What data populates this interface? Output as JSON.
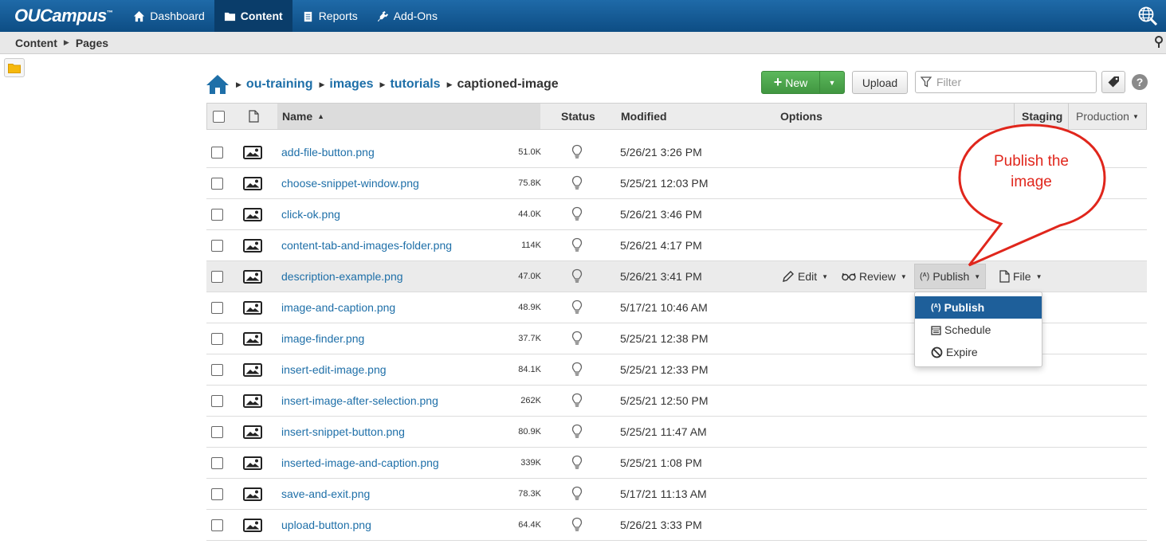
{
  "app": {
    "logo_text": "OUCampus"
  },
  "nav": {
    "dashboard": "Dashboard",
    "content": "Content",
    "reports": "Reports",
    "addons": "Add-Ons"
  },
  "breadcrumb": {
    "section": "Content",
    "page": "Pages"
  },
  "path": {
    "items": [
      "ou-training",
      "images",
      "tutorials"
    ],
    "current": "captioned-image"
  },
  "toolbar": {
    "new_label": "New",
    "upload_label": "Upload",
    "filter_placeholder": "Filter"
  },
  "table": {
    "headers": {
      "name": "Name",
      "status": "Status",
      "modified": "Modified",
      "options": "Options",
      "staging": "Staging",
      "production": "Production"
    },
    "rows": [
      {
        "name": "add-file-button.png",
        "size": "51.0K",
        "modified": "5/26/21 3:26 PM"
      },
      {
        "name": "choose-snippet-window.png",
        "size": "75.8K",
        "modified": "5/25/21 12:03 PM"
      },
      {
        "name": "click-ok.png",
        "size": "44.0K",
        "modified": "5/26/21 3:46 PM"
      },
      {
        "name": "content-tab-and-images-folder.png",
        "size": "114K",
        "modified": "5/26/21 4:17 PM"
      },
      {
        "name": "description-example.png",
        "size": "47.0K",
        "modified": "5/26/21 3:41 PM"
      },
      {
        "name": "image-and-caption.png",
        "size": "48.9K",
        "modified": "5/17/21 10:46 AM"
      },
      {
        "name": "image-finder.png",
        "size": "37.7K",
        "modified": "5/25/21 12:38 PM"
      },
      {
        "name": "insert-edit-image.png",
        "size": "84.1K",
        "modified": "5/25/21 12:33 PM"
      },
      {
        "name": "insert-image-after-selection.png",
        "size": "262K",
        "modified": "5/25/21 12:50 PM"
      },
      {
        "name": "insert-snippet-button.png",
        "size": "80.9K",
        "modified": "5/25/21 11:47 AM"
      },
      {
        "name": "inserted-image-and-caption.png",
        "size": "339K",
        "modified": "5/25/21 1:08 PM"
      },
      {
        "name": "save-and-exit.png",
        "size": "78.3K",
        "modified": "5/17/21 11:13 AM"
      },
      {
        "name": "upload-button.png",
        "size": "64.4K",
        "modified": "5/26/21 3:33 PM"
      }
    ]
  },
  "row_options": {
    "edit": "Edit",
    "review": "Review",
    "publish": "Publish",
    "file": "File"
  },
  "publish_menu": {
    "publish": "Publish",
    "schedule": "Schedule",
    "expire": "Expire"
  },
  "callout": {
    "line1": "Publish the",
    "line2": "image",
    "color": "#e0261c"
  },
  "colors": {
    "nav_bg": "#0d4d84",
    "link": "#1e6fa8",
    "new_button": "#4cae4c",
    "menu_active": "#1e5f9a"
  }
}
